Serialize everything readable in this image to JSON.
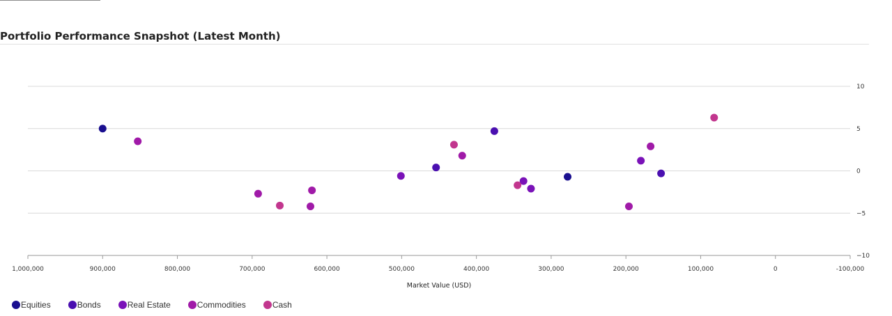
{
  "page": {
    "title": "Portfolio Performance Snapshot (Latest Month)"
  },
  "chart_data": {
    "type": "scatter",
    "title": "Portfolio Performance Snapshot (Latest Month)",
    "xlabel": "Market Value (USD)",
    "ylabel": "",
    "xlim": [
      1000000,
      -100000
    ],
    "x_reversed": true,
    "ylim": [
      -10,
      10
    ],
    "x_ticks": [
      1000000,
      900000,
      800000,
      700000,
      600000,
      500000,
      400000,
      300000,
      200000,
      100000,
      0,
      -100000
    ],
    "x_tick_labels": [
      "1,000,000",
      "900,000",
      "800,000",
      "700,000",
      "600,000",
      "500,000",
      "400,000",
      "300,000",
      "200,000",
      "100,000",
      "0",
      "-100,000"
    ],
    "y_ticks": [
      10,
      5,
      0,
      -5,
      -10
    ],
    "y_tick_labels": [
      "10",
      "5",
      "0",
      "−5",
      "−10"
    ],
    "y_axis_side": "right",
    "grid": "horizontal",
    "legend_position": "bottom-left",
    "series": [
      {
        "name": "Equities",
        "color": "#1a0f8f",
        "points": [
          [
            900000,
            5.0
          ],
          [
            278000,
            -0.7
          ]
        ]
      },
      {
        "name": "Bonds",
        "color": "#4a0fb0",
        "points": [
          [
            454000,
            0.4
          ],
          [
            376000,
            4.7
          ],
          [
            153000,
            -0.3
          ]
        ]
      },
      {
        "name": "Real Estate",
        "color": "#7a12b8",
        "points": [
          [
            501000,
            -0.6
          ],
          [
            337000,
            -1.2
          ],
          [
            327000,
            -2.1
          ],
          [
            180000,
            1.2
          ]
        ]
      },
      {
        "name": "Commodities",
        "color": "#a01aa8",
        "points": [
          [
            853000,
            3.5
          ],
          [
            692000,
            -2.7
          ],
          [
            622000,
            -4.2
          ],
          [
            620000,
            -2.3
          ],
          [
            419000,
            1.8
          ],
          [
            196000,
            -4.2
          ],
          [
            167000,
            2.9
          ]
        ]
      },
      {
        "name": "Cash",
        "color": "#c2368e",
        "points": [
          [
            663000,
            -4.1
          ],
          [
            430000,
            3.1
          ],
          [
            345000,
            -1.7
          ],
          [
            82000,
            6.3
          ]
        ]
      }
    ]
  }
}
